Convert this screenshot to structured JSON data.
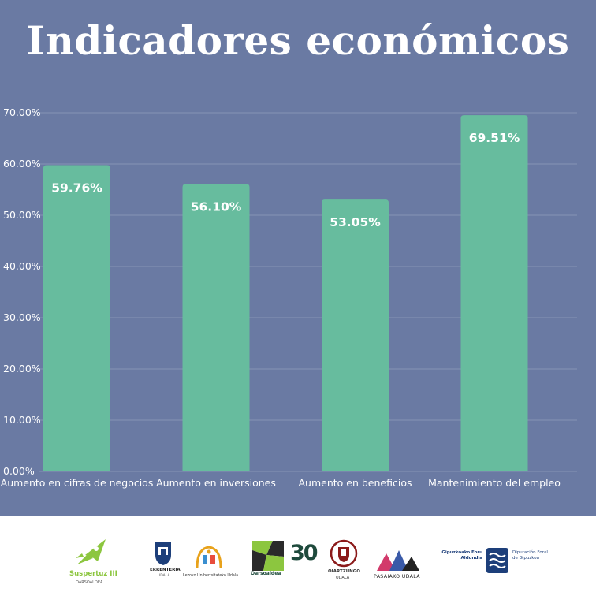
{
  "title": "Indicadores económicos",
  "chart_data": {
    "type": "bar",
    "categories": [
      "Aumento en cifras de negocios",
      "Aumento en inversiones",
      "Aumento en beneficios",
      "Mantenimiento del empleo"
    ],
    "values": [
      59.76,
      56.1,
      53.05,
      69.51
    ],
    "value_labels": [
      "59.76%",
      "56.10%",
      "53.05%",
      "69.51%"
    ],
    "ylim": [
      0,
      70
    ],
    "yticks": [
      "0.00%",
      "10.00%",
      "20.00%",
      "30.00%",
      "40.00%",
      "50.00%",
      "60.00%",
      "70.00%"
    ],
    "grid": true,
    "bar_color": "#67bc9e",
    "background_color": "#6a7aa3"
  },
  "footer": {
    "logos": {
      "suspertuz": {
        "name": "Suspertuz III",
        "sub": "OARSOALDEA"
      },
      "errenteria": {
        "name": "ERRENTERIA",
        "sub": "UDALA"
      },
      "lezo": {
        "name": "Lezoko Unibertsitateko Udala"
      },
      "oarsoaldea": {
        "name": "Oarsoaldea",
        "badge": "30"
      },
      "oiartzun": {
        "name": "OIARTZUNGO",
        "sub": "UDALA"
      },
      "pasaia": {
        "name": "PASAIAKO UDALA"
      },
      "gipuzkoa": {
        "name_left": "Gipuzkoako Foru Aldundia",
        "name_right": "Diputación Foral de Gipuzkoa"
      }
    }
  }
}
